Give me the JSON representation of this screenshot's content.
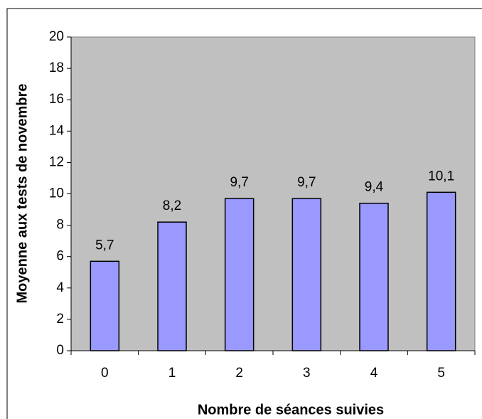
{
  "chart_data": {
    "type": "bar",
    "xlabel": "Nombre de séances suivies",
    "ylabel": "Moyenne aux tests de novembre",
    "categories": [
      "0",
      "1",
      "2",
      "3",
      "4",
      "5"
    ],
    "values": [
      5.7,
      8.2,
      9.7,
      9.7,
      9.4,
      10.1
    ],
    "value_labels": [
      "5,7",
      "8,2",
      "9,7",
      "9,7",
      "9,4",
      "10,1"
    ],
    "color": "#9999ff",
    "plot_background": "#c0c0c0",
    "ylim": [
      0,
      20
    ],
    "yticks": [
      0,
      2,
      4,
      6,
      8,
      10,
      12,
      14,
      16,
      18,
      20
    ],
    "grid": false
  }
}
